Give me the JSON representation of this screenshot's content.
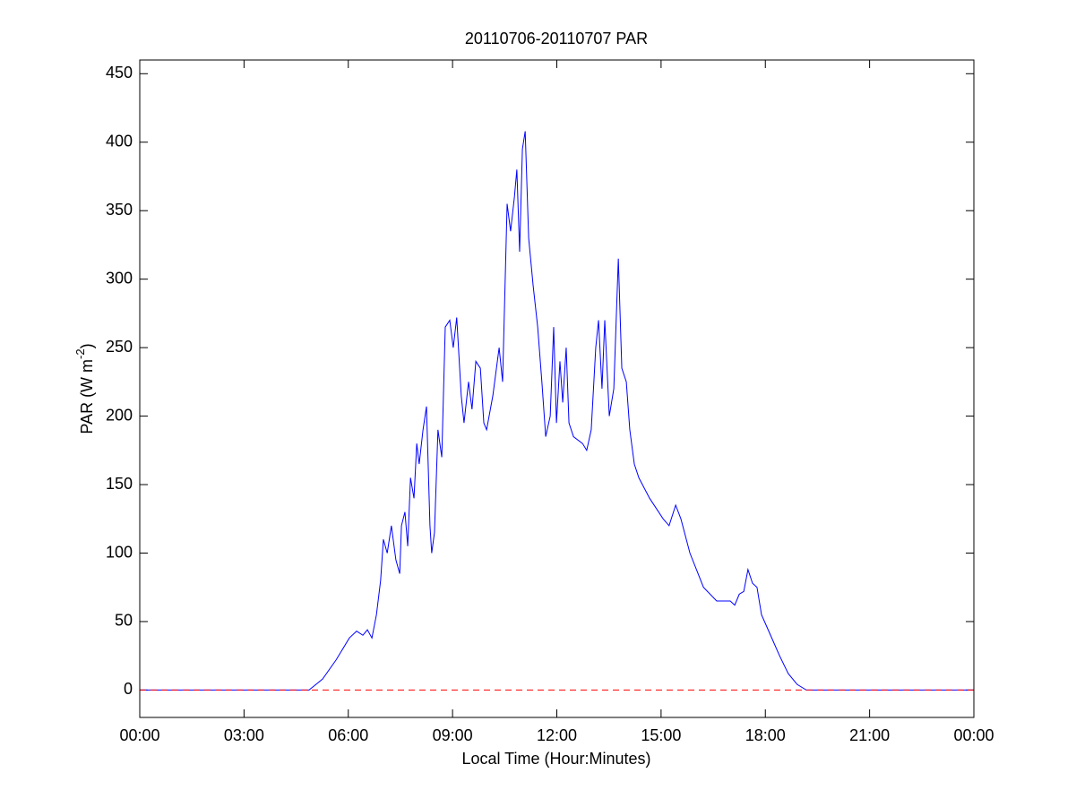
{
  "chart_data": {
    "type": "line",
    "title": "20110706-20110707 PAR",
    "xlabel": "Local Time (Hour:Minutes)",
    "ylabel": {
      "text": "PAR (W m",
      "superscript": "-2",
      "suffix": ")"
    },
    "xlim": [
      0,
      24
    ],
    "ylim": [
      -20,
      460
    ],
    "xticks": [
      {
        "value": 0,
        "label": "00:00"
      },
      {
        "value": 3,
        "label": "03:00"
      },
      {
        "value": 6,
        "label": "06:00"
      },
      {
        "value": 9,
        "label": "09:00"
      },
      {
        "value": 12,
        "label": "12:00"
      },
      {
        "value": 15,
        "label": "15:00"
      },
      {
        "value": 18,
        "label": "18:00"
      },
      {
        "value": 21,
        "label": "21:00"
      },
      {
        "value": 24,
        "label": "00:00"
      }
    ],
    "yticks": [
      0,
      50,
      100,
      150,
      200,
      250,
      300,
      350,
      400,
      450
    ],
    "grid": false,
    "reference_line": {
      "value": 0,
      "color": "#ff0000",
      "dashed": true
    },
    "x": [
      0,
      4.87,
      5.26,
      5.65,
      6.03,
      6.24,
      6.42,
      6.55,
      6.68,
      6.81,
      6.93,
      7.01,
      7.12,
      7.24,
      7.37,
      7.48,
      7.53,
      7.63,
      7.71,
      7.79,
      7.89,
      7.97,
      8.04,
      8.15,
      8.25,
      8.35,
      8.4,
      8.48,
      8.58,
      8.69,
      8.79,
      8.92,
      9.02,
      9.12,
      9.25,
      9.33,
      9.46,
      9.56,
      9.67,
      9.8,
      9.9,
      9.98,
      10.16,
      10.34,
      10.44,
      10.57,
      10.67,
      10.78,
      10.85,
      10.93,
      11.01,
      11.09,
      11.19,
      11.32,
      11.45,
      11.57,
      11.68,
      11.81,
      11.91,
      11.99,
      12.09,
      12.17,
      12.27,
      12.35,
      12.48,
      12.74,
      12.86,
      12.99,
      13.12,
      13.2,
      13.3,
      13.38,
      13.51,
      13.64,
      13.77,
      13.87,
      14.0,
      14.1,
      14.23,
      14.36,
      14.67,
      15.06,
      15.23,
      15.42,
      15.57,
      15.83,
      16.22,
      16.6,
      16.99,
      17.12,
      17.25,
      17.38,
      17.5,
      17.63,
      17.76,
      17.89,
      18.15,
      18.41,
      18.66,
      18.92,
      19.18,
      24
    ],
    "series": [
      {
        "color": "#0000ff",
        "values": [
          0,
          0,
          8,
          22,
          38,
          43,
          40,
          44,
          38,
          55,
          80,
          110,
          100,
          120,
          95,
          85,
          120,
          130,
          105,
          155,
          140,
          180,
          165,
          190,
          207,
          120,
          100,
          115,
          190,
          170,
          265,
          270,
          250,
          272,
          215,
          195,
          225,
          205,
          240,
          235,
          195,
          190,
          215,
          250,
          225,
          355,
          335,
          360,
          380,
          320,
          395,
          408,
          330,
          295,
          265,
          225,
          185,
          200,
          265,
          195,
          240,
          210,
          250,
          195,
          185,
          180,
          175,
          190,
          250,
          270,
          220,
          270,
          200,
          220,
          315,
          235,
          225,
          190,
          165,
          155,
          140,
          125,
          120,
          135,
          125,
          100,
          75,
          65,
          65,
          62,
          70,
          72,
          88,
          78,
          75,
          55,
          40,
          25,
          12,
          4,
          0,
          0
        ]
      }
    ]
  }
}
